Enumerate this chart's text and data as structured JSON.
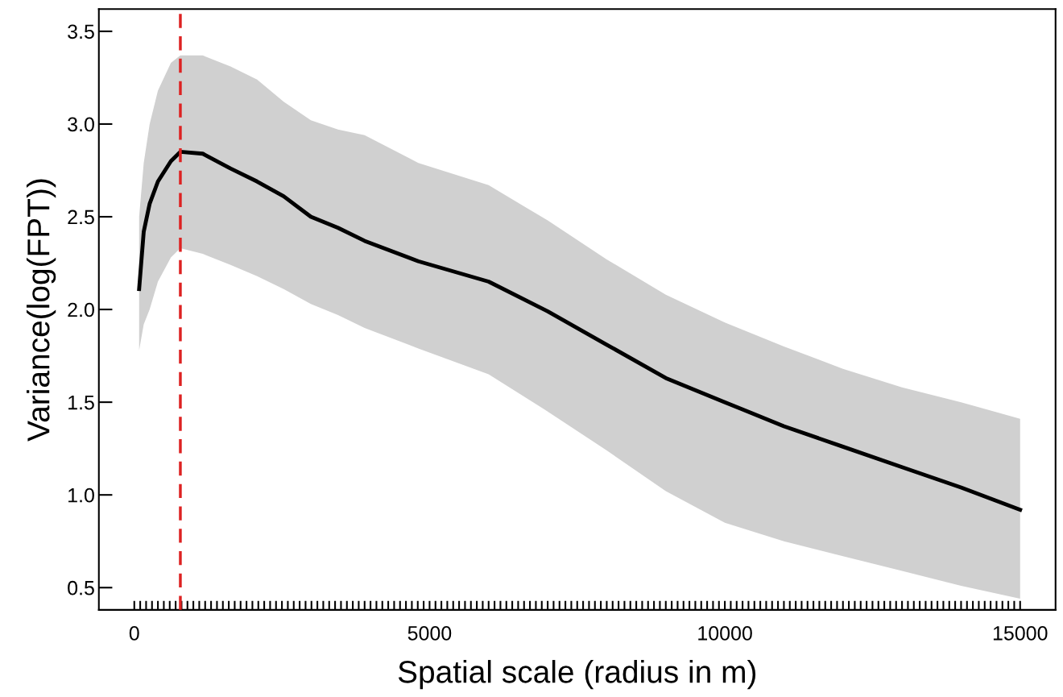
{
  "chart_data": {
    "type": "line",
    "xlabel": "Spatial scale (radius in m)",
    "ylabel": "Variance(log(FPT))",
    "x": [
      82,
      160,
      260,
      400,
      620,
      780,
      1160,
      1630,
      2080,
      2530,
      2990,
      3450,
      3900,
      4810,
      6000,
      7000,
      8000,
      9000,
      10000,
      11000,
      12000,
      13000,
      14000,
      15000
    ],
    "series": [
      {
        "color": "#000000",
        "values": [
          2.11,
          2.42,
          2.57,
          2.69,
          2.8,
          2.85,
          2.84,
          2.76,
          2.69,
          2.61,
          2.5,
          2.44,
          2.37,
          2.26,
          2.15,
          1.99,
          1.81,
          1.63,
          1.5,
          1.37,
          1.26,
          1.15,
          1.04,
          0.92
        ],
        "upper": [
          2.5,
          2.79,
          3.0,
          3.18,
          3.33,
          3.37,
          3.37,
          3.31,
          3.24,
          3.12,
          3.02,
          2.97,
          2.94,
          2.79,
          2.67,
          2.48,
          2.27,
          2.08,
          1.93,
          1.8,
          1.68,
          1.58,
          1.5,
          1.41
        ],
        "lower": [
          1.78,
          1.92,
          2.0,
          2.15,
          2.28,
          2.33,
          2.3,
          2.24,
          2.18,
          2.11,
          2.03,
          1.97,
          1.9,
          1.79,
          1.65,
          1.45,
          1.24,
          1.02,
          0.85,
          0.75,
          0.67,
          0.59,
          0.51,
          0.44
        ]
      }
    ],
    "ref_lines": [
      {
        "axis": "x",
        "value": 780,
        "color": "#dd2222",
        "line_style": "dashed"
      }
    ],
    "xlim": [
      -600,
      15600
    ],
    "ylim": [
      0.38,
      3.62
    ],
    "xticks": [
      0,
      {
        "value": 100,
        "label": null
      },
      {
        "value": 200,
        "label": null
      },
      {
        "value": 300,
        "label": null
      },
      {
        "value": 400,
        "label": null
      },
      {
        "value": 500,
        "label": null
      },
      {
        "value": 600,
        "label": null
      },
      {
        "value": 700,
        "label": null
      },
      {
        "value": 800,
        "label": null
      },
      {
        "value": 900,
        "label": null
      },
      {
        "value": 1000,
        "label": null
      },
      {
        "value": 1100,
        "label": null
      },
      {
        "value": 1200,
        "label": null
      },
      {
        "value": 1300,
        "label": null
      },
      {
        "value": 1400,
        "label": null
      },
      {
        "value": 1500,
        "label": null
      },
      {
        "value": 1600,
        "label": null
      },
      {
        "value": 1700,
        "label": null
      },
      {
        "value": 1800,
        "label": null
      },
      {
        "value": 1900,
        "label": null
      },
      {
        "value": 2000,
        "label": null
      },
      {
        "value": 2100,
        "label": null
      },
      {
        "value": 2200,
        "label": null
      },
      {
        "value": 2300,
        "label": null
      },
      {
        "value": 2400,
        "label": null
      },
      {
        "value": 2500,
        "label": null
      },
      {
        "value": 2600,
        "label": null
      },
      {
        "value": 2700,
        "label": null
      },
      {
        "value": 2800,
        "label": null
      },
      {
        "value": 2900,
        "label": null
      },
      {
        "value": 3000,
        "label": null
      },
      {
        "value": 3100,
        "label": null
      },
      {
        "value": 3200,
        "label": null
      },
      {
        "value": 3300,
        "label": null
      },
      {
        "value": 3400,
        "label": null
      },
      {
        "value": 3500,
        "label": null
      },
      {
        "value": 3600,
        "label": null
      },
      {
        "value": 3700,
        "label": null
      },
      {
        "value": 3800,
        "label": null
      },
      {
        "value": 3900,
        "label": null
      },
      {
        "value": 4000,
        "label": null
      },
      {
        "value": 4100,
        "label": null
      },
      {
        "value": 4200,
        "label": null
      },
      {
        "value": 4300,
        "label": null
      },
      {
        "value": 4400,
        "label": null
      },
      {
        "value": 4500,
        "label": null
      },
      {
        "value": 4600,
        "label": null
      },
      {
        "value": 4700,
        "label": null
      },
      {
        "value": 4800,
        "label": null
      },
      {
        "value": 4900,
        "label": null
      },
      5000,
      {
        "value": 5100,
        "label": null
      },
      {
        "value": 5200,
        "label": null
      },
      {
        "value": 5300,
        "label": null
      },
      {
        "value": 5400,
        "label": null
      },
      {
        "value": 5500,
        "label": null
      },
      {
        "value": 5600,
        "label": null
      },
      {
        "value": 5700,
        "label": null
      },
      {
        "value": 5800,
        "label": null
      },
      {
        "value": 5900,
        "label": null
      },
      {
        "value": 6000,
        "label": null
      },
      {
        "value": 6100,
        "label": null
      },
      {
        "value": 6200,
        "label": null
      },
      {
        "value": 6300,
        "label": null
      },
      {
        "value": 6400,
        "label": null
      },
      {
        "value": 6500,
        "label": null
      },
      {
        "value": 6600,
        "label": null
      },
      {
        "value": 6700,
        "label": null
      },
      {
        "value": 6800,
        "label": null
      },
      {
        "value": 6900,
        "label": null
      },
      {
        "value": 7000,
        "label": null
      },
      {
        "value": 7100,
        "label": null
      },
      {
        "value": 7200,
        "label": null
      },
      {
        "value": 7300,
        "label": null
      },
      {
        "value": 7400,
        "label": null
      },
      {
        "value": 7500,
        "label": null
      },
      {
        "value": 7600,
        "label": null
      },
      {
        "value": 7700,
        "label": null
      },
      {
        "value": 7800,
        "label": null
      },
      {
        "value": 7900,
        "label": null
      },
      {
        "value": 8000,
        "label": null
      },
      {
        "value": 8100,
        "label": null
      },
      {
        "value": 8200,
        "label": null
      },
      {
        "value": 8300,
        "label": null
      },
      {
        "value": 8400,
        "label": null
      },
      {
        "value": 8500,
        "label": null
      },
      {
        "value": 8600,
        "label": null
      },
      {
        "value": 8700,
        "label": null
      },
      {
        "value": 8800,
        "label": null
      },
      {
        "value": 8900,
        "label": null
      },
      {
        "value": 9000,
        "label": null
      },
      {
        "value": 9100,
        "label": null
      },
      {
        "value": 9200,
        "label": null
      },
      {
        "value": 9300,
        "label": null
      },
      {
        "value": 9400,
        "label": null
      },
      {
        "value": 9500,
        "label": null
      },
      {
        "value": 9600,
        "label": null
      },
      {
        "value": 9700,
        "label": null
      },
      {
        "value": 9800,
        "label": null
      },
      {
        "value": 9900,
        "label": null
      },
      10000,
      {
        "value": 10100,
        "label": null
      },
      {
        "value": 10200,
        "label": null
      },
      {
        "value": 10300,
        "label": null
      },
      {
        "value": 10400,
        "label": null
      },
      {
        "value": 10500,
        "label": null
      },
      {
        "value": 10600,
        "label": null
      },
      {
        "value": 10700,
        "label": null
      },
      {
        "value": 10800,
        "label": null
      },
      {
        "value": 10900,
        "label": null
      },
      {
        "value": 11000,
        "label": null
      },
      {
        "value": 11100,
        "label": null
      },
      {
        "value": 11200,
        "label": null
      },
      {
        "value": 11300,
        "label": null
      },
      {
        "value": 11400,
        "label": null
      },
      {
        "value": 11500,
        "label": null
      },
      {
        "value": 11600,
        "label": null
      },
      {
        "value": 11700,
        "label": null
      },
      {
        "value": 11800,
        "label": null
      },
      {
        "value": 11900,
        "label": null
      },
      {
        "value": 12000,
        "label": null
      },
      {
        "value": 12100,
        "label": null
      },
      {
        "value": 12200,
        "label": null
      },
      {
        "value": 12300,
        "label": null
      },
      {
        "value": 12400,
        "label": null
      },
      {
        "value": 12500,
        "label": null
      },
      {
        "value": 12600,
        "label": null
      },
      {
        "value": 12700,
        "label": null
      },
      {
        "value": 12800,
        "label": null
      },
      {
        "value": 12900,
        "label": null
      },
      {
        "value": 13000,
        "label": null
      },
      {
        "value": 13100,
        "label": null
      },
      {
        "value": 13200,
        "label": null
      },
      {
        "value": 13300,
        "label": null
      },
      {
        "value": 13400,
        "label": null
      },
      {
        "value": 13500,
        "label": null
      },
      {
        "value": 13600,
        "label": null
      },
      {
        "value": 13700,
        "label": null
      },
      {
        "value": 13800,
        "label": null
      },
      {
        "value": 13900,
        "label": null
      },
      {
        "value": 14000,
        "label": null
      },
      {
        "value": 14100,
        "label": null
      },
      {
        "value": 14200,
        "label": null
      },
      {
        "value": 14300,
        "label": null
      },
      {
        "value": 14400,
        "label": null
      },
      {
        "value": 14500,
        "label": null
      },
      {
        "value": 14600,
        "label": null
      },
      {
        "value": 14700,
        "label": null
      },
      {
        "value": 14800,
        "label": null
      },
      {
        "value": 14900,
        "label": null
      },
      15000
    ],
    "yticks": [
      {
        "value": 0.5,
        "label": "0.5"
      },
      {
        "value": 1.0,
        "label": "1.0"
      },
      {
        "value": 1.5,
        "label": "1.5"
      },
      {
        "value": 2.0,
        "label": "2.0"
      },
      {
        "value": 2.5,
        "label": "2.5"
      },
      {
        "value": 3.0,
        "label": "3.0"
      },
      {
        "value": 3.5,
        "label": "3.5"
      }
    ],
    "grid": false,
    "marker": "none",
    "line_style": "solid"
  }
}
